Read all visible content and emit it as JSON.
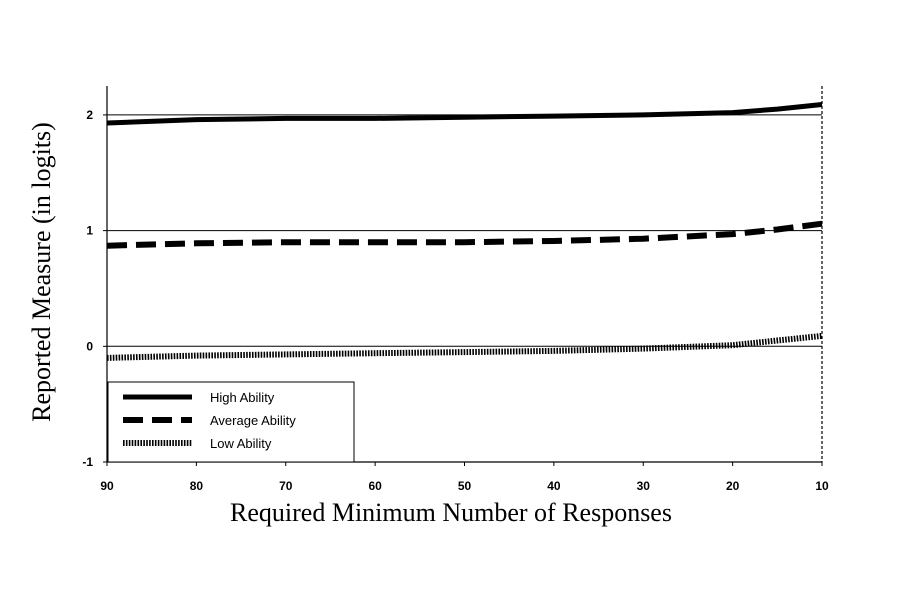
{
  "chart_data": {
    "type": "line",
    "title": "",
    "xlabel": "Required Minimum Number of Responses",
    "ylabel": "Reported Measure (in logits)",
    "x_reversed": true,
    "xlim": [
      90,
      10
    ],
    "ylim": [
      -1,
      2.25
    ],
    "x_ticks": [
      "90",
      "80",
      "70",
      "60",
      "50",
      "40",
      "30",
      "20",
      "10"
    ],
    "y_ticks": [
      "-1",
      "0",
      "1",
      "2"
    ],
    "reference_lines": [
      0,
      1,
      2
    ],
    "legend_position": "bottom-left",
    "x": [
      90,
      80,
      70,
      60,
      50,
      40,
      30,
      20,
      15,
      10
    ],
    "series": [
      {
        "name": "High Ability",
        "style": "solid",
        "values": [
          1.93,
          1.96,
          1.97,
          1.97,
          1.98,
          1.99,
          2.0,
          2.02,
          2.05,
          2.09
        ]
      },
      {
        "name": "Average Ability",
        "style": "dashed",
        "values": [
          0.87,
          0.89,
          0.9,
          0.9,
          0.9,
          0.91,
          0.93,
          0.97,
          1.01,
          1.06
        ]
      },
      {
        "name": "Low Ability",
        "style": "dotted",
        "values": [
          -0.1,
          -0.08,
          -0.07,
          -0.06,
          -0.05,
          -0.04,
          -0.02,
          0.01,
          0.05,
          0.09
        ]
      }
    ]
  }
}
